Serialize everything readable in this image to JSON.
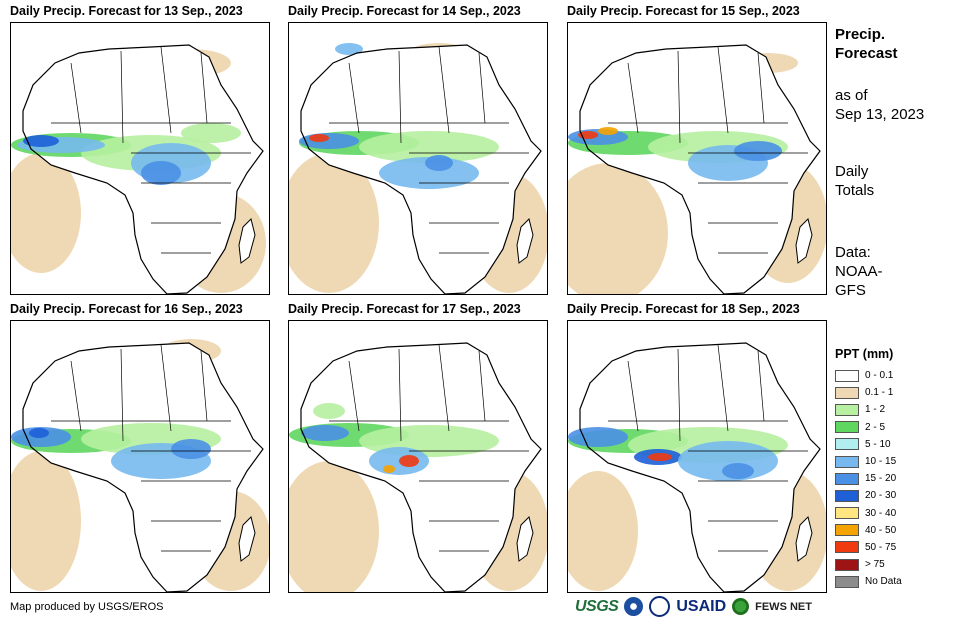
{
  "panels": [
    {
      "title": "Daily Precip. Forecast for 13  Sep., 2023"
    },
    {
      "title": "Daily Precip. Forecast for 14  Sep., 2023"
    },
    {
      "title": "Daily Precip. Forecast for 15  Sep., 2023"
    },
    {
      "title": "Daily Precip. Forecast for 16  Sep., 2023"
    },
    {
      "title": "Daily Precip. Forecast for 17  Sep., 2023"
    },
    {
      "title": "Daily Precip. Forecast for 18  Sep., 2023"
    }
  ],
  "side": {
    "heading_line1": "Precip.",
    "heading_line2": "Forecast",
    "asof_line1": "as of",
    "asof_line2": "Sep 13, 2023",
    "totals_line1": "Daily",
    "totals_line2": "Totals",
    "data_line1": "Data:",
    "data_line2": "NOAA-",
    "data_line3": "GFS"
  },
  "legend": {
    "title": "PPT (mm)",
    "items": [
      {
        "label": "0 - 0.1",
        "color": "#ffffff"
      },
      {
        "label": "0.1 - 1",
        "color": "#efd9b4"
      },
      {
        "label": "1 - 2",
        "color": "#b6f0a0"
      },
      {
        "label": "2 - 5",
        "color": "#5fd65f"
      },
      {
        "label": "5 - 10",
        "color": "#b0eef0"
      },
      {
        "label": "10 - 15",
        "color": "#77b9ee"
      },
      {
        "label": "15 - 20",
        "color": "#4a90e4"
      },
      {
        "label": "20 - 30",
        "color": "#1e5fd8"
      },
      {
        "label": "30 - 40",
        "color": "#ffe680"
      },
      {
        "label": "40 - 50",
        "color": "#f5a300"
      },
      {
        "label": "50 - 75",
        "color": "#f03a10"
      },
      {
        "label": "> 75",
        "color": "#9e1414"
      },
      {
        "label": "No Data",
        "color": "#8c8c8c"
      }
    ]
  },
  "footer": {
    "credit": "Map produced by USGS/EROS",
    "logo_usgs": "USGS",
    "logo_usaid": "USAID",
    "logo_fews": "FEWS NET"
  }
}
